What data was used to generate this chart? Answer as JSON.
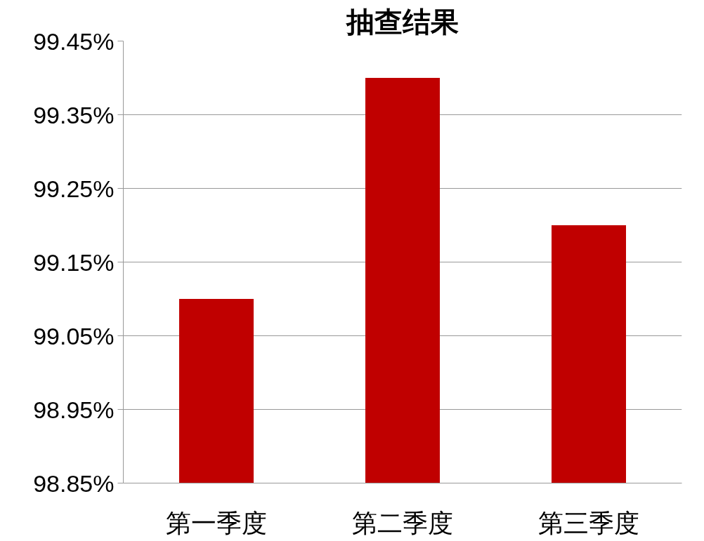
{
  "chart_data": {
    "type": "bar",
    "title": "抽查结果",
    "categories": [
      "第一季度",
      "第二季度",
      "第三季度"
    ],
    "values": [
      99.1,
      99.4,
      99.2
    ],
    "color": "#c00000",
    "ylim": [
      98.85,
      99.45
    ],
    "yticks": [
      {
        "value": 98.85,
        "label": "98.85%"
      },
      {
        "value": 98.95,
        "label": "98.95%"
      },
      {
        "value": 99.05,
        "label": "99.05%"
      },
      {
        "value": 99.15,
        "label": "99.15%"
      },
      {
        "value": 99.25,
        "label": "99.25%"
      },
      {
        "value": 99.35,
        "label": "99.35%"
      },
      {
        "value": 99.45,
        "label": "99.45%"
      }
    ],
    "grid": "y"
  }
}
